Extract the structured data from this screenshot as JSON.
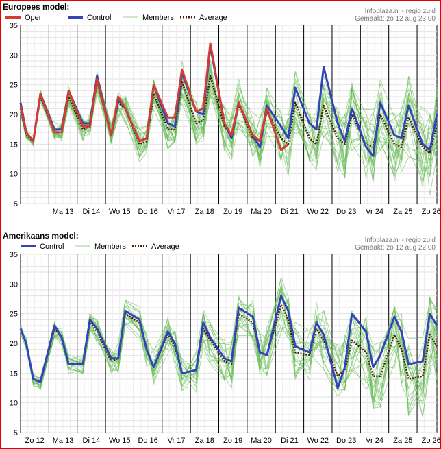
{
  "chart_data": [
    {
      "type": "line",
      "title": "Europees model:",
      "source": "Infoplaza.nl - regio zuid",
      "made": "Gemaakt: zo 12 aug 23:00",
      "ylim": [
        5,
        35
      ],
      "yticks": [
        5,
        10,
        15,
        20,
        25,
        30,
        35
      ],
      "xlim": [
        0,
        14.7
      ],
      "day_labels": [
        "Ma 13",
        "Di 14",
        "Wo 15",
        "Do 16",
        "Vr 17",
        "Za 18",
        "Zo 19",
        "Ma 20",
        "Di 21",
        "Wo 22",
        "Do 23",
        "Vr 24",
        "Za 25",
        "Zo 26"
      ],
      "legend": [
        "Oper",
        "Control",
        "Members",
        "Average"
      ],
      "colors": {
        "oper": "#d23c32",
        "control": "#3344bb",
        "members": "#66bb55",
        "average": "#4a1a08"
      },
      "series": [
        {
          "key": "control",
          "x": [
            0,
            0.2,
            0.45,
            0.7,
            1.2,
            1.45,
            1.7,
            2.2,
            2.45,
            2.7,
            3.2,
            3.45,
            3.7,
            4.2,
            4.45,
            4.7,
            5.2,
            5.45,
            5.7,
            6.2,
            6.45,
            6.7,
            7.2,
            7.45,
            7.7,
            8.2,
            8.45,
            8.7,
            9.2,
            9.45,
            9.7,
            10.2,
            10.45,
            10.7,
            11.2,
            11.45,
            11.7,
            12.2,
            12.45,
            12.7,
            13.2,
            13.45,
            13.7,
            14.2,
            14.45,
            14.7
          ],
          "values": [
            22,
            17,
            15.5,
            23.5,
            17.5,
            17.5,
            24,
            18.5,
            18.5,
            26.5,
            16.5,
            22.5,
            21,
            15.5,
            16,
            25,
            18.5,
            18,
            27,
            20.5,
            20,
            31.5,
            18.5,
            16,
            22,
            16.5,
            14.5,
            21.5,
            18,
            16,
            24.5,
            18.5,
            17.5,
            28,
            18.5,
            15.5,
            21,
            14.5,
            13,
            22,
            16.5,
            16,
            21.5,
            15,
            14,
            20
          ]
        },
        {
          "key": "oper",
          "x": [
            0,
            0.2,
            0.45,
            0.7,
            1.2,
            1.45,
            1.7,
            2.2,
            2.45,
            2.7,
            3.2,
            3.45,
            3.7,
            4.2,
            4.45,
            4.7,
            5.2,
            5.45,
            5.7,
            6.2,
            6.45,
            6.7,
            7.2,
            7.45,
            7.7,
            8.2,
            8.45,
            8.7,
            9.2,
            9.45
          ],
          "values": [
            21.5,
            17,
            15.5,
            23.5,
            17,
            17,
            24,
            18,
            18,
            26,
            16.5,
            23,
            21,
            15.5,
            16,
            25,
            19.5,
            19.5,
            27.5,
            20.5,
            21,
            32,
            18.5,
            16.5,
            22,
            16.5,
            15.5,
            21,
            14,
            15
          ]
        },
        {
          "key": "average",
          "x": [
            0,
            0.2,
            0.45,
            0.7,
            1.2,
            1.45,
            1.7,
            2.2,
            2.45,
            2.7,
            3.2,
            3.45,
            3.7,
            4.2,
            4.45,
            4.7,
            5.2,
            5.45,
            5.7,
            6.2,
            6.45,
            6.7,
            7.2,
            7.45,
            7.7,
            8.2,
            8.45,
            8.7,
            9.2,
            9.45,
            9.7,
            10.2,
            10.45,
            10.7,
            11.2,
            11.45,
            11.7,
            12.2,
            12.45,
            12.7,
            13.2,
            13.45,
            13.7,
            14.2,
            14.45,
            14.7
          ],
          "values": [
            21,
            16.5,
            15.5,
            23,
            17,
            17,
            23,
            17.5,
            18,
            25.5,
            16.5,
            22,
            21,
            15,
            15.5,
            23.5,
            17.5,
            17.5,
            25.5,
            18.5,
            19,
            26.5,
            18,
            16.5,
            21.5,
            16,
            15.5,
            20.5,
            16,
            15,
            22,
            16,
            15,
            21.5,
            16,
            15,
            20,
            15,
            14.5,
            20,
            15,
            14.5,
            19.5,
            14.5,
            13.5,
            18.5
          ]
        }
      ]
    },
    {
      "type": "line",
      "title": "Amerikaans model:",
      "source": "Infoplaza.nl - regio zuid",
      "made": "Gemaakt: zo 12 aug 22:00",
      "ylim": [
        5,
        35
      ],
      "yticks": [
        5,
        10,
        15,
        20,
        25,
        30,
        35
      ],
      "xlim": [
        0,
        14.7
      ],
      "day_labels": [
        "Zo 12",
        "Ma 13",
        "Di 14",
        "Wo 15",
        "Do 16",
        "Vr 17",
        "Za 18",
        "Zo 19",
        "Ma 20",
        "Di 21",
        "Wo 22",
        "Do 23",
        "Vr 24",
        "Za 25",
        "Zo 26"
      ],
      "legend": [
        "Control",
        "Members",
        "Average"
      ],
      "colors": {
        "control": "#3344bb",
        "members": "#66bb55",
        "average": "#4a1a08"
      },
      "series": [
        {
          "key": "control",
          "x": [
            0,
            0.2,
            0.45,
            0.7,
            1.2,
            1.45,
            1.7,
            2.2,
            2.45,
            2.7,
            3.2,
            3.45,
            3.7,
            4.2,
            4.45,
            4.7,
            5.2,
            5.45,
            5.7,
            6.2,
            6.45,
            6.7,
            7.2,
            7.45,
            7.7,
            8.2,
            8.45,
            8.7,
            9.2,
            9.45,
            9.7,
            10.2,
            10.45,
            10.7,
            11.2,
            11.45,
            11.7,
            12.2,
            12.45,
            12.7,
            13.2,
            13.45,
            13.7,
            14.2,
            14.45,
            14.7
          ],
          "values": [
            22.5,
            20,
            14,
            13.5,
            23,
            21,
            16.5,
            16.5,
            24,
            22.5,
            17.5,
            17.5,
            25.5,
            24,
            19,
            16,
            22,
            20,
            15,
            15.5,
            23.5,
            21,
            17.5,
            17,
            26,
            24.5,
            18.5,
            18,
            28,
            25.5,
            19.5,
            18.5,
            23.5,
            21.5,
            12.5,
            16,
            25,
            22,
            16,
            18,
            24.5,
            22,
            16.5,
            17,
            25,
            23
          ]
        },
        {
          "key": "average",
          "x": [
            0,
            0.2,
            0.45,
            0.7,
            1.2,
            1.45,
            1.7,
            2.2,
            2.45,
            2.7,
            3.2,
            3.45,
            3.7,
            4.2,
            4.45,
            4.7,
            5.2,
            5.45,
            5.7,
            6.2,
            6.45,
            6.7,
            7.2,
            7.45,
            7.7,
            8.2,
            8.45,
            8.7,
            9.2,
            9.45,
            9.7,
            10.2,
            10.45,
            10.7,
            11.2,
            11.45,
            11.7,
            12.2,
            12.45,
            12.7,
            13.2,
            13.45,
            13.7,
            14.2,
            14.45,
            14.7
          ],
          "values": [
            22.5,
            20,
            14,
            13.5,
            22.5,
            21,
            16.5,
            16.5,
            23.5,
            22,
            17,
            17.5,
            25,
            23.5,
            19,
            16,
            21.5,
            19.5,
            15,
            15.5,
            22.5,
            20.5,
            17,
            16.5,
            25,
            23.5,
            18.5,
            18,
            26.5,
            24,
            18.5,
            18,
            22.5,
            20.5,
            14.5,
            15.5,
            20.5,
            18.5,
            14.5,
            14.5,
            21.5,
            19,
            14,
            14.5,
            21.5,
            19.5
          ]
        }
      ]
    }
  ]
}
